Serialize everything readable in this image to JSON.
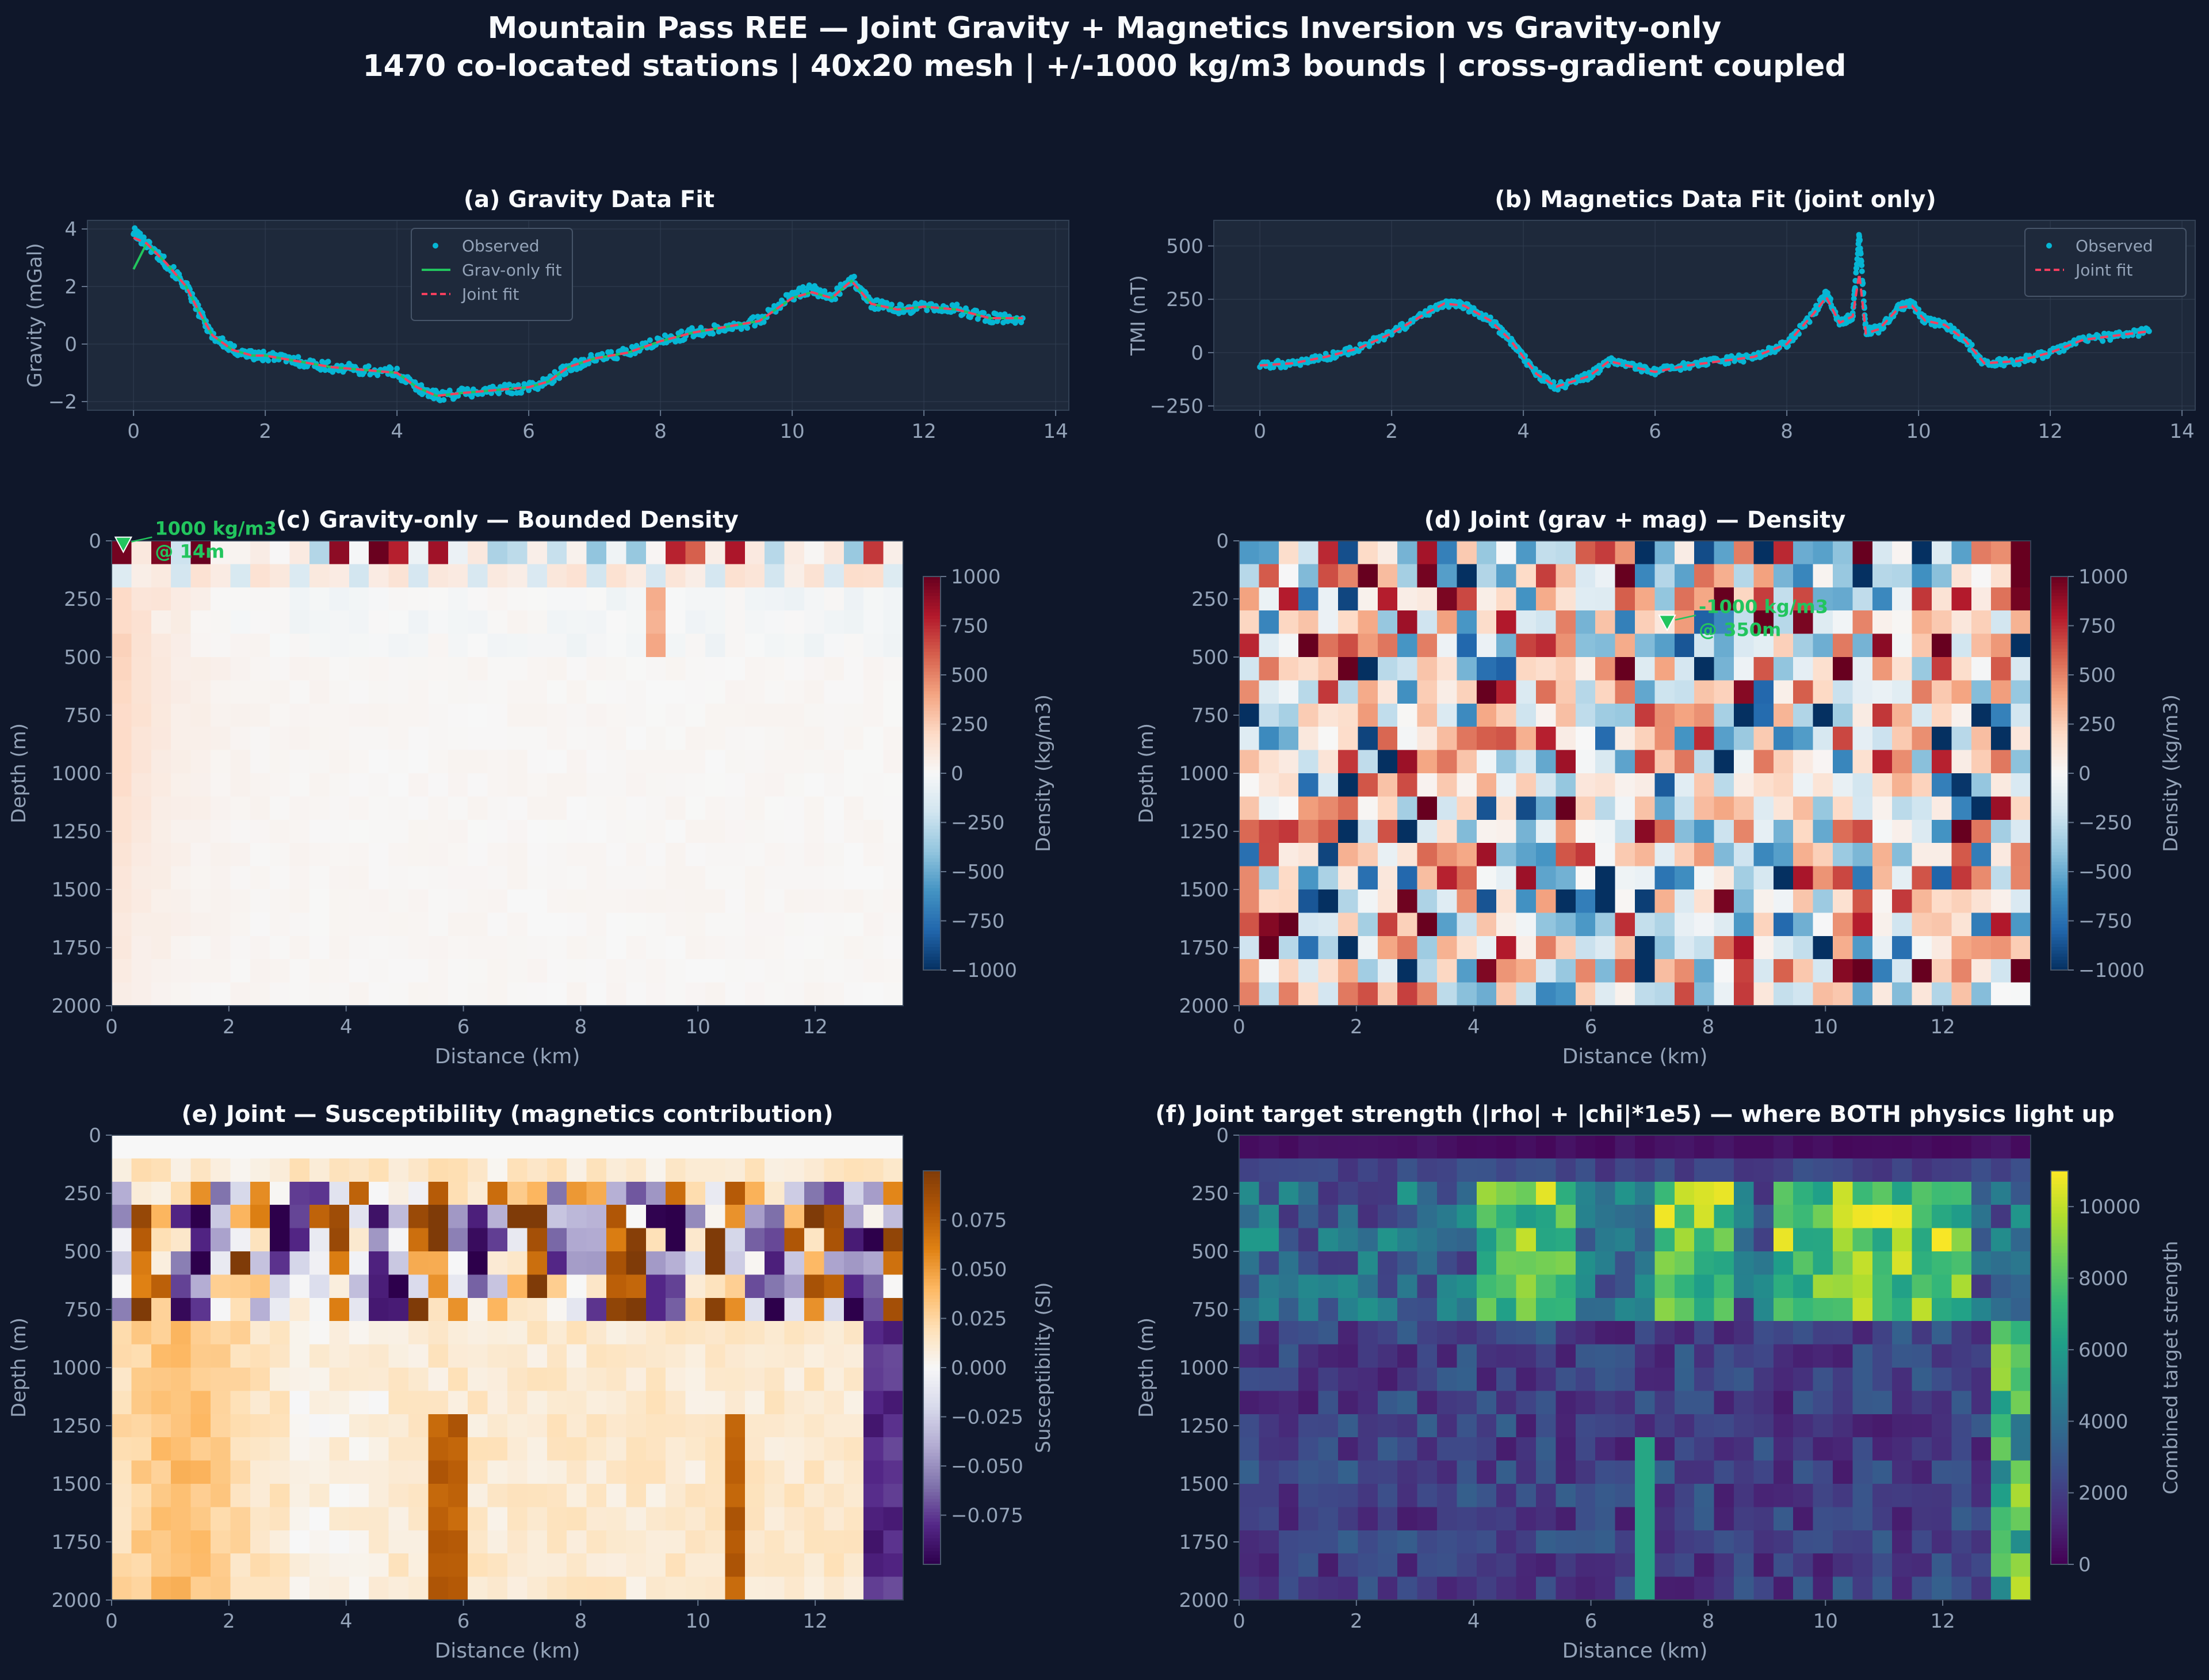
{
  "title_line1": "Mountain Pass REE — Joint Gravity + Magnetics Inversion vs Gravity-only",
  "title_line2": "1470 co-located stations | 40x20 mesh | +/-1000 kg/m3 bounds | cross-gradient coupled",
  "colors": {
    "background": "#0f172a",
    "axes_bg": "#1e293b",
    "observed": "#06b6d4",
    "grav_only_fit": "#22c55e",
    "joint_fit": "#f43f5e",
    "annotation": "#22c55e"
  },
  "chart_data": [
    {
      "id": "a",
      "type": "scatter",
      "title": "(a) Gravity Data Fit",
      "xlabel": "",
      "ylabel": "Gravity (mGal)",
      "xlim": [
        -0.7,
        14.2
      ],
      "ylim": [
        -2.3,
        4.3
      ],
      "xticks": [
        0,
        2,
        4,
        6,
        8,
        10,
        12,
        14
      ],
      "yticks": [
        -2,
        0,
        2,
        4
      ],
      "legend": [
        "Observed",
        "Grav-only fit",
        "Joint fit"
      ],
      "legend_loc": "upper-center",
      "series": [
        {
          "name": "Observed",
          "style": "points",
          "x": [
            0.0,
            0.2,
            0.5,
            0.8,
            1.0,
            1.2,
            1.5,
            1.8,
            2.0,
            2.5,
            3.0,
            3.5,
            4.0,
            4.3,
            4.6,
            5.0,
            5.5,
            6.0,
            6.3,
            6.6,
            7.0,
            7.5,
            8.0,
            8.5,
            9.0,
            9.5,
            10.0,
            10.3,
            10.6,
            10.9,
            11.2,
            11.6,
            12.0,
            12.5,
            13.0,
            13.5
          ],
          "y": [
            3.9,
            3.5,
            2.8,
            2.0,
            1.1,
            0.3,
            -0.2,
            -0.4,
            -0.4,
            -0.6,
            -0.8,
            -0.9,
            -1.0,
            -1.5,
            -1.8,
            -1.7,
            -1.6,
            -1.5,
            -1.3,
            -0.8,
            -0.5,
            -0.3,
            0.1,
            0.4,
            0.6,
            0.8,
            1.7,
            1.9,
            1.6,
            2.3,
            1.4,
            1.2,
            1.3,
            1.2,
            0.9,
            0.9
          ]
        },
        {
          "name": "Grav-only fit",
          "style": "line",
          "x": [
            0.0,
            0.2,
            0.5,
            0.8,
            1.0,
            1.2,
            1.5,
            1.8,
            2.0,
            2.5,
            3.0,
            3.5,
            4.0,
            4.3,
            4.6,
            5.0,
            5.5,
            6.0,
            6.3,
            6.6,
            7.0,
            7.5,
            8.0,
            8.5,
            9.0,
            9.5,
            10.0,
            10.3,
            10.6,
            10.9,
            11.2,
            11.6,
            12.0,
            12.5,
            13.0,
            13.5
          ],
          "y": [
            2.6,
            3.5,
            2.8,
            2.0,
            1.1,
            0.3,
            -0.2,
            -0.4,
            -0.4,
            -0.6,
            -0.8,
            -0.9,
            -1.0,
            -1.5,
            -1.8,
            -1.7,
            -1.6,
            -1.5,
            -1.3,
            -0.8,
            -0.5,
            -0.3,
            0.1,
            0.4,
            0.6,
            0.8,
            1.6,
            1.8,
            1.6,
            2.2,
            1.4,
            1.2,
            1.3,
            1.2,
            0.9,
            0.9
          ]
        },
        {
          "name": "Joint fit",
          "style": "dashed",
          "x": [
            0.0,
            0.2,
            0.5,
            0.8,
            1.0,
            1.2,
            1.5,
            1.8,
            2.0,
            2.5,
            3.0,
            3.5,
            4.0,
            4.3,
            4.6,
            5.0,
            5.5,
            6.0,
            6.3,
            6.6,
            7.0,
            7.5,
            8.0,
            8.5,
            9.0,
            9.5,
            10.0,
            10.3,
            10.6,
            10.9,
            11.2,
            11.6,
            12.0,
            12.5,
            13.0,
            13.5
          ],
          "y": [
            3.7,
            3.5,
            2.8,
            2.0,
            1.1,
            0.3,
            -0.2,
            -0.4,
            -0.4,
            -0.6,
            -0.8,
            -0.9,
            -1.0,
            -1.5,
            -1.8,
            -1.7,
            -1.6,
            -1.5,
            -1.3,
            -0.8,
            -0.5,
            -0.3,
            0.1,
            0.4,
            0.6,
            0.8,
            1.6,
            1.8,
            1.6,
            2.2,
            1.4,
            1.2,
            1.3,
            1.2,
            0.9,
            0.9
          ]
        }
      ]
    },
    {
      "id": "b",
      "type": "scatter",
      "title": "(b) Magnetics Data Fit (joint only)",
      "xlabel": "",
      "ylabel": "TMI (nT)",
      "xlim": [
        -0.7,
        14.2
      ],
      "ylim": [
        -270,
        620
      ],
      "xticks": [
        0,
        2,
        4,
        6,
        8,
        10,
        12,
        14
      ],
      "yticks": [
        -250,
        0,
        250,
        500
      ],
      "legend": [
        "Observed",
        "Joint fit"
      ],
      "legend_loc": "upper-right",
      "series": [
        {
          "name": "Observed",
          "style": "points",
          "x": [
            0.0,
            0.5,
            1.0,
            1.5,
            2.0,
            2.5,
            2.8,
            3.1,
            3.5,
            3.8,
            4.0,
            4.2,
            4.5,
            5.0,
            5.3,
            5.7,
            6.0,
            6.5,
            7.0,
            7.5,
            8.0,
            8.4,
            8.6,
            8.8,
            9.0,
            9.1,
            9.2,
            9.4,
            9.7,
            9.9,
            10.1,
            10.4,
            10.7,
            11.0,
            11.5,
            12.0,
            12.5,
            13.0,
            13.5
          ],
          "y": [
            -60,
            -50,
            -20,
            20,
            90,
            180,
            230,
            220,
            150,
            60,
            -20,
            -100,
            -160,
            -110,
            -40,
            -70,
            -90,
            -60,
            -40,
            -20,
            40,
            180,
            280,
            140,
            170,
            560,
            100,
            110,
            210,
            230,
            150,
            130,
            60,
            -50,
            -40,
            0,
            60,
            80,
            100
          ]
        },
        {
          "name": "Joint fit",
          "style": "dashed",
          "x": [
            0.0,
            0.5,
            1.0,
            1.5,
            2.0,
            2.5,
            2.8,
            3.1,
            3.5,
            3.8,
            4.0,
            4.2,
            4.5,
            5.0,
            5.3,
            5.7,
            6.0,
            6.5,
            7.0,
            7.5,
            8.0,
            8.4,
            8.6,
            8.8,
            9.0,
            9.1,
            9.2,
            9.4,
            9.7,
            9.9,
            10.1,
            10.4,
            10.7,
            11.0,
            11.5,
            12.0,
            12.5,
            13.0,
            13.5
          ],
          "y": [
            -60,
            -50,
            -20,
            20,
            90,
            180,
            230,
            220,
            150,
            60,
            -20,
            -100,
            -160,
            -110,
            -40,
            -70,
            -90,
            -60,
            -40,
            -20,
            40,
            180,
            260,
            140,
            170,
            370,
            90,
            110,
            210,
            220,
            150,
            130,
            60,
            -50,
            -40,
            0,
            60,
            80,
            100
          ]
        }
      ]
    },
    {
      "id": "c",
      "type": "heatmap",
      "title": "(c) Gravity-only — Bounded Density",
      "xlabel": "Distance (km)",
      "ylabel": "Depth (m)",
      "xlim": [
        0,
        13.5
      ],
      "ylim": [
        2000,
        0
      ],
      "xticks": [
        0,
        2,
        4,
        6,
        8,
        10,
        12
      ],
      "yticks": [
        0,
        250,
        500,
        750,
        1000,
        1250,
        1500,
        1750,
        2000
      ],
      "grid": [
        40,
        20
      ],
      "colormap": "RdBu_r",
      "vmin": -1000,
      "vmax": 1000,
      "colorbar_label": "Density (kg/m3)",
      "colorbar_ticks": [
        1000,
        750,
        500,
        250,
        0,
        -250,
        -500,
        -750,
        -1000
      ],
      "colorbar_tick_labels": [
        "1000",
        "750",
        "500",
        "250",
        "0",
        "−250",
        "−500",
        "−750",
        "−1000"
      ],
      "seed": 7,
      "annotation": {
        "text1": "1000 kg/m3",
        "text2": "@ 14m",
        "x": 0.2,
        "y": 14
      }
    },
    {
      "id": "d",
      "type": "heatmap",
      "title": "(d) Joint (grav + mag) — Density",
      "xlabel": "Distance (km)",
      "ylabel": "Depth (m)",
      "xlim": [
        0,
        13.5
      ],
      "ylim": [
        2000,
        0
      ],
      "xticks": [
        0,
        2,
        4,
        6,
        8,
        10,
        12
      ],
      "yticks": [
        0,
        250,
        500,
        750,
        1000,
        1250,
        1500,
        1750,
        2000
      ],
      "grid": [
        40,
        20
      ],
      "colormap": "RdBu_r",
      "vmin": -1000,
      "vmax": 1000,
      "colorbar_label": "Density (kg/m3)",
      "colorbar_ticks": [
        1000,
        750,
        500,
        250,
        0,
        -250,
        -500,
        -750,
        -1000
      ],
      "colorbar_tick_labels": [
        "1000",
        "750",
        "500",
        "250",
        "0",
        "−250",
        "−500",
        "−750",
        "−1000"
      ],
      "seed": 23,
      "annotation": {
        "text1": "-1000 kg/m3",
        "text2": "@ 350m",
        "x": 7.3,
        "y": 350
      }
    },
    {
      "id": "e",
      "type": "heatmap",
      "title": "(e) Joint — Susceptibility (magnetics contribution)",
      "xlabel": "Distance (km)",
      "ylabel": "Depth (m)",
      "xlim": [
        0,
        13.5
      ],
      "ylim": [
        2000,
        0
      ],
      "xticks": [
        0,
        2,
        4,
        6,
        8,
        10,
        12
      ],
      "yticks": [
        0,
        250,
        500,
        750,
        1000,
        1250,
        1500,
        1750,
        2000
      ],
      "grid": [
        40,
        20
      ],
      "colormap": "PuOr_r",
      "vmin": -0.1,
      "vmax": 0.1,
      "colorbar_label": "Susceptibility (SI)",
      "colorbar_ticks": [
        0.075,
        0.05,
        0.025,
        0.0,
        -0.025,
        -0.05,
        -0.075
      ],
      "colorbar_tick_labels": [
        "0.075",
        "0.050",
        "0.025",
        "0.000",
        "−0.025",
        "−0.050",
        "−0.075"
      ],
      "seed": 41
    },
    {
      "id": "f",
      "type": "heatmap",
      "title": "(f) Joint target strength (|rho| + |chi|*1e5) — where BOTH physics light up",
      "xlabel": "Distance (km)",
      "ylabel": "Depth (m)",
      "xlim": [
        0,
        13.5
      ],
      "ylim": [
        2000,
        0
      ],
      "xticks": [
        0,
        2,
        4,
        6,
        8,
        10,
        12
      ],
      "yticks": [
        0,
        250,
        500,
        750,
        1000,
        1250,
        1500,
        1750,
        2000
      ],
      "grid": [
        40,
        20
      ],
      "colormap": "viridis",
      "vmin": 0,
      "vmax": 11000,
      "colorbar_label": "Combined target strength",
      "colorbar_ticks": [
        10000,
        8000,
        6000,
        4000,
        2000,
        0
      ],
      "colorbar_tick_labels": [
        "10000",
        "8000",
        "6000",
        "4000",
        "2000",
        "0"
      ],
      "seed": 59
    }
  ]
}
